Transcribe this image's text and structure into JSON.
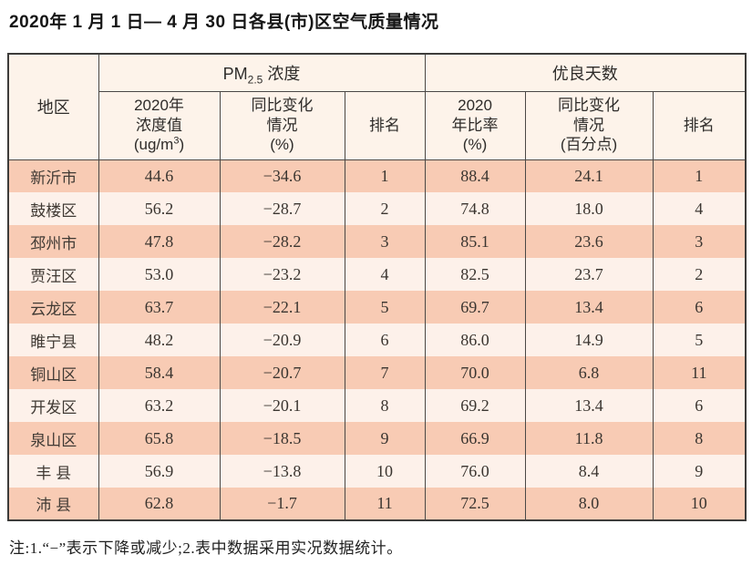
{
  "title": "2020年 1 月 1 日— 4 月 30 日各县(市)区空气质量情况",
  "note": "注:1.“−”表示下降或减少;2.表中数据采用实况数据统计。",
  "colors": {
    "row_salmon": "#f8cbb4",
    "row_light": "#fdf1ea",
    "header_bg": "#fdf3ea",
    "border_dark": "#3d3c3a",
    "text": "#2e2c2a"
  },
  "table": {
    "header": {
      "region_label": "地区",
      "pm_group": {
        "main": "PM",
        "sub": "2.5",
        "rest": " 浓度"
      },
      "days_group_label": "优良天数",
      "pm_value": {
        "line1": "2020年",
        "line2": "浓度值",
        "unit_pre": "(ug/m",
        "unit_sup": "3",
        "unit_post": ")"
      },
      "pm_change": {
        "line1": "同比变化",
        "line2": "情况",
        "line3": "(%)"
      },
      "pm_rank_label": "排名",
      "days_ratio": {
        "line1": "2020",
        "line2": "年比率",
        "line3": "(%)"
      },
      "days_change": {
        "line1": "同比变化",
        "line2": "情况",
        "line3": "(百分点)"
      },
      "days_rank_label": "排名"
    },
    "rows": [
      {
        "region": "新沂市",
        "pm_value": "44.6",
        "pm_change": "−34.6",
        "pm_rank": "1",
        "days_ratio": "88.4",
        "days_change": "24.1",
        "days_rank": "1"
      },
      {
        "region": "鼓楼区",
        "pm_value": "56.2",
        "pm_change": "−28.7",
        "pm_rank": "2",
        "days_ratio": "74.8",
        "days_change": "18.0",
        "days_rank": "4"
      },
      {
        "region": "邳州市",
        "pm_value": "47.8",
        "pm_change": "−28.2",
        "pm_rank": "3",
        "days_ratio": "85.1",
        "days_change": "23.6",
        "days_rank": "3"
      },
      {
        "region": "贾汪区",
        "pm_value": "53.0",
        "pm_change": "−23.2",
        "pm_rank": "4",
        "days_ratio": "82.5",
        "days_change": "23.7",
        "days_rank": "2"
      },
      {
        "region": "云龙区",
        "pm_value": "63.7",
        "pm_change": "−22.1",
        "pm_rank": "5",
        "days_ratio": "69.7",
        "days_change": "13.4",
        "days_rank": "6"
      },
      {
        "region": "睢宁县",
        "pm_value": "48.2",
        "pm_change": "−20.9",
        "pm_rank": "6",
        "days_ratio": "86.0",
        "days_change": "14.9",
        "days_rank": "5"
      },
      {
        "region": "铜山区",
        "pm_value": "58.4",
        "pm_change": "−20.7",
        "pm_rank": "7",
        "days_ratio": "70.0",
        "days_change": "6.8",
        "days_rank": "11"
      },
      {
        "region": "开发区",
        "pm_value": "63.2",
        "pm_change": "−20.1",
        "pm_rank": "8",
        "days_ratio": "69.2",
        "days_change": "13.4",
        "days_rank": "6"
      },
      {
        "region": "泉山区",
        "pm_value": "65.8",
        "pm_change": "−18.5",
        "pm_rank": "9",
        "days_ratio": "66.9",
        "days_change": "11.8",
        "days_rank": "8"
      },
      {
        "region": "丰 县",
        "pm_value": "56.9",
        "pm_change": "−13.8",
        "pm_rank": "10",
        "days_ratio": "76.0",
        "days_change": "8.4",
        "days_rank": "9"
      },
      {
        "region": "沛 县",
        "pm_value": "62.8",
        "pm_change": "−1.7",
        "pm_rank": "11",
        "days_ratio": "72.5",
        "days_change": "8.0",
        "days_rank": "10"
      }
    ]
  }
}
